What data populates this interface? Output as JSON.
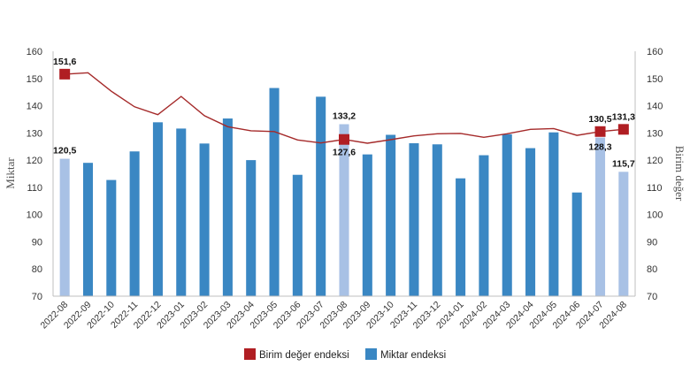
{
  "chart_data": {
    "type": "bar",
    "categories": [
      "2022-08",
      "2022-09",
      "2022-10",
      "2022-11",
      "2022-12",
      "2023-01",
      "2023-02",
      "2023-03",
      "2023-04",
      "2023-05",
      "2023-06",
      "2023-07",
      "2023-08",
      "2023-09",
      "2023-10",
      "2023-11",
      "2023-12",
      "2024-01",
      "2024-02",
      "2024-03",
      "2024-04",
      "2024-05",
      "2024-06",
      "2024-07",
      "2024-08"
    ],
    "series": [
      {
        "name": "Miktar endeksi",
        "kind": "bar",
        "axis": "left",
        "values": [
          120.5,
          119.0,
          112.7,
          123.2,
          133.9,
          131.6,
          126.1,
          135.3,
          120.0,
          146.5,
          114.6,
          143.3,
          133.2,
          122.1,
          129.3,
          126.2,
          125.8,
          113.3,
          121.8,
          129.5,
          124.4,
          130.2,
          108.1,
          128.3,
          115.7
        ],
        "highlight": [
          0,
          12,
          23,
          24
        ]
      },
      {
        "name": "Birim değer endeksi",
        "kind": "line",
        "axis": "right",
        "values": [
          151.6,
          152.1,
          145.3,
          139.6,
          136.7,
          143.4,
          136.3,
          132.3,
          130.8,
          130.5,
          127.4,
          126.3,
          127.6,
          126.2,
          127.5,
          128.9,
          129.7,
          129.8,
          128.4,
          129.7,
          131.3,
          131.6,
          129.1,
          130.5,
          131.3
        ],
        "markers": [
          0,
          12,
          23,
          24
        ]
      }
    ],
    "data_labels": [
      {
        "series": 1,
        "index": 0,
        "text": "151,6",
        "pos": "above"
      },
      {
        "series": 0,
        "index": 0,
        "text": "120,5",
        "pos": "above"
      },
      {
        "series": 0,
        "index": 12,
        "text": "133,2",
        "pos": "above"
      },
      {
        "series": 1,
        "index": 12,
        "text": "127,6",
        "pos": "below"
      },
      {
        "series": 1,
        "index": 23,
        "text": "130,5",
        "pos": "above"
      },
      {
        "series": 0,
        "index": 23,
        "text": "128,3",
        "pos": "below"
      },
      {
        "series": 1,
        "index": 24,
        "text": "131,3",
        "pos": "above"
      },
      {
        "series": 0,
        "index": 24,
        "text": "115,7",
        "pos": "above"
      }
    ],
    "ylabel": "Miktar",
    "y2label": "Birim değer",
    "ylim": [
      70,
      160
    ],
    "y2lim": [
      70,
      160
    ],
    "yticks": [
      70,
      80,
      90,
      100,
      110,
      120,
      130,
      140,
      150,
      160
    ],
    "grid": false,
    "legend": "bottom-center",
    "colors": {
      "bar": "#3A87C3",
      "bar_highlight": "#A8C1E5",
      "line": "#A52A2A",
      "marker": "#B01E23"
    }
  }
}
